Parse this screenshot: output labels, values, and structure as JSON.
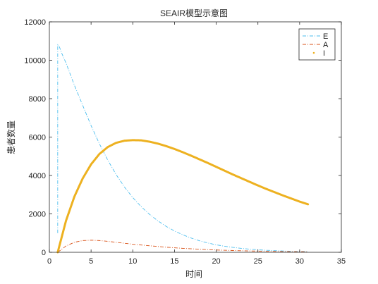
{
  "chart_data": {
    "type": "line",
    "title": "SEAIR模型示意图",
    "xlabel": "时间",
    "ylabel": "患者数量",
    "xlim": [
      0,
      35
    ],
    "ylim": [
      0,
      12000
    ],
    "xticks": [
      0,
      5,
      10,
      15,
      20,
      25,
      30,
      35
    ],
    "yticks": [
      0,
      2000,
      4000,
      6000,
      8000,
      10000,
      12000
    ],
    "grid": false,
    "box": true,
    "legend": {
      "position": "top-right"
    },
    "series": [
      {
        "name": "E",
        "color": "#4DBEEE",
        "style": "dash-dot",
        "x": [
          1,
          1,
          1.2,
          1.5,
          2,
          3,
          4,
          5,
          6,
          7,
          8,
          9,
          10,
          11,
          12,
          13,
          14,
          15,
          16,
          17,
          18,
          19,
          20,
          21,
          22,
          23,
          24,
          25,
          26,
          27,
          28,
          29,
          30,
          31
        ],
        "y": [
          1000,
          10800,
          10700,
          10350,
          9850,
          8700,
          7650,
          6600,
          5650,
          4800,
          4050,
          3400,
          2850,
          2380,
          1980,
          1640,
          1350,
          1110,
          910,
          740,
          600,
          485,
          390,
          315,
          255,
          205,
          165,
          130,
          105,
          85,
          68,
          54,
          43,
          35
        ]
      },
      {
        "name": "A",
        "color": "#D95319",
        "style": "dash-dot",
        "x": [
          1,
          2,
          3,
          4,
          5,
          6,
          7,
          8,
          9,
          10,
          12,
          14,
          16,
          18,
          20,
          22,
          24,
          26,
          28,
          30,
          31
        ],
        "y": [
          0,
          330,
          520,
          610,
          630,
          610,
          570,
          520,
          470,
          420,
          340,
          265,
          205,
          160,
          120,
          92,
          70,
          52,
          40,
          30,
          25
        ]
      },
      {
        "name": "I",
        "color": "#EDB120",
        "style": "dots",
        "x": [
          1,
          2,
          3,
          4,
          5,
          6,
          7,
          8,
          9,
          10,
          11,
          12,
          13,
          14,
          15,
          16,
          17,
          18,
          19,
          20,
          21,
          22,
          23,
          24,
          25,
          26,
          27,
          28,
          29,
          30,
          31
        ],
        "y": [
          0,
          1650,
          2900,
          3850,
          4580,
          5120,
          5480,
          5700,
          5810,
          5840,
          5830,
          5760,
          5660,
          5530,
          5380,
          5210,
          5030,
          4840,
          4650,
          4450,
          4250,
          4050,
          3860,
          3670,
          3480,
          3300,
          3130,
          2960,
          2800,
          2640,
          2500
        ]
      }
    ]
  }
}
